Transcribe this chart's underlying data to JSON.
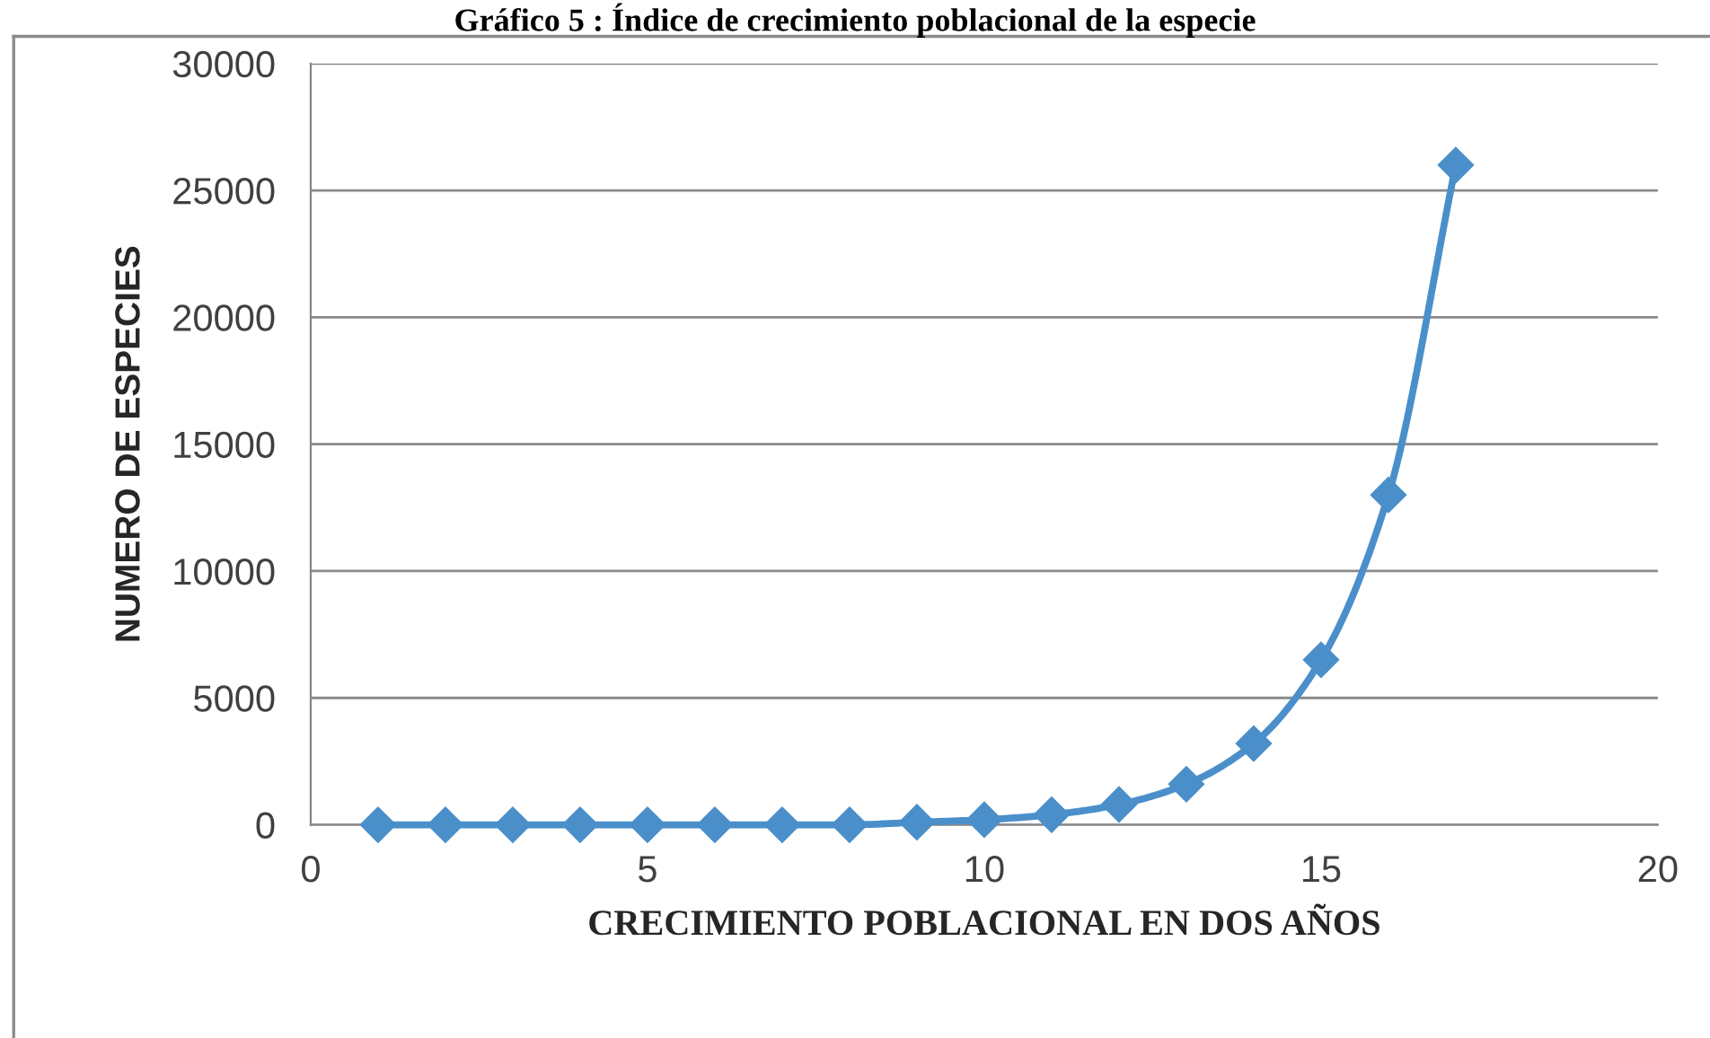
{
  "chart_data": {
    "type": "line",
    "title": "Gráfico 5 : Índice de crecimiento poblacional de la especie",
    "xlabel": "CRECIMIENTO POBLACIONAL EN DOS AÑOS",
    "ylabel": "NUMERO DE ESPECIES",
    "x": [
      1,
      2,
      3,
      4,
      5,
      6,
      7,
      8,
      9,
      10,
      11,
      12,
      13,
      14,
      15,
      16,
      17
    ],
    "series": [
      {
        "color": "#4a8fca",
        "values": [
          0,
          0,
          0,
          0,
          0,
          0,
          0,
          0,
          100,
          200,
          400,
          800,
          1600,
          3200,
          6500,
          13000,
          26000
        ]
      }
    ],
    "xlim": [
      0,
      20
    ],
    "xticks": [
      0,
      5,
      10,
      15,
      20
    ],
    "ylim": [
      0,
      30000
    ],
    "yticks": [
      0,
      5000,
      10000,
      15000,
      20000,
      25000,
      30000
    ],
    "grid": "y",
    "marker": "diamond",
    "line_style": "solid"
  }
}
